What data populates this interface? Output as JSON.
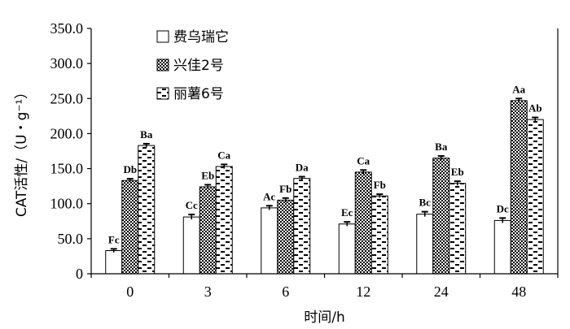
{
  "chart_data": {
    "type": "bar",
    "xlabel": "时间/h",
    "ylabel": "CAT活性/（U・g⁻¹）",
    "ylim": [
      0,
      350
    ],
    "yticks": [
      "0",
      "50.0",
      "100.0",
      "150.0",
      "200.0",
      "250.0",
      "300.0",
      "350.0"
    ],
    "categories": [
      "0",
      "3",
      "6",
      "12",
      "24",
      "48"
    ],
    "grid": false,
    "legend_position": "top-left",
    "series": [
      {
        "name": "费乌瑞它",
        "pattern": "white",
        "values": [
          33,
          81,
          94,
          71,
          85,
          76
        ],
        "errors": [
          2.5,
          3.5,
          3,
          3,
          3.5,
          3.5
        ],
        "labels": [
          "Fc",
          "Cc",
          "Ac",
          "Ec",
          "Bc",
          "Dc"
        ]
      },
      {
        "name": "兴佳2号",
        "pattern": "checker",
        "values": [
          133,
          124,
          105,
          145,
          165,
          247
        ],
        "errors": [
          2.5,
          3,
          3,
          3,
          3,
          3
        ],
        "labels": [
          "Db",
          "Eb",
          "Fb",
          "Ca",
          "Ba",
          "Aa"
        ]
      },
      {
        "name": "丽薯6号",
        "pattern": "dash",
        "values": [
          183,
          153,
          136,
          111,
          129,
          220
        ],
        "errors": [
          2.5,
          3,
          2.5,
          2.5,
          3,
          3
        ],
        "labels": [
          "Ba",
          "Ca",
          "Da",
          "Fb",
          "Eb",
          "Ab"
        ]
      }
    ],
    "colors": {
      "axis": "#000000",
      "bar_fill": "#ffffff",
      "pattern": "#000000"
    }
  }
}
